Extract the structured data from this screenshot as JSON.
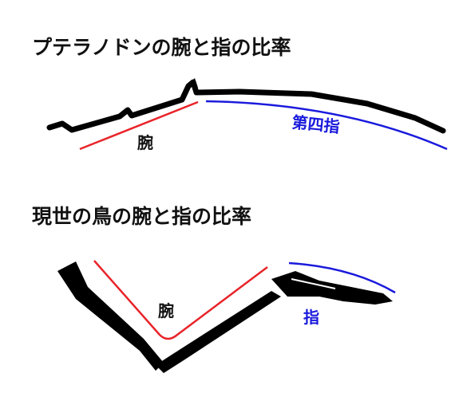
{
  "panels": [
    {
      "title": "プテラノドンの腕と指の比率",
      "arm_label": "腕",
      "finger_label": "第四指"
    },
    {
      "title": "現世の鳥の腕と指の比率",
      "arm_label": "腕",
      "finger_label": "指"
    }
  ]
}
